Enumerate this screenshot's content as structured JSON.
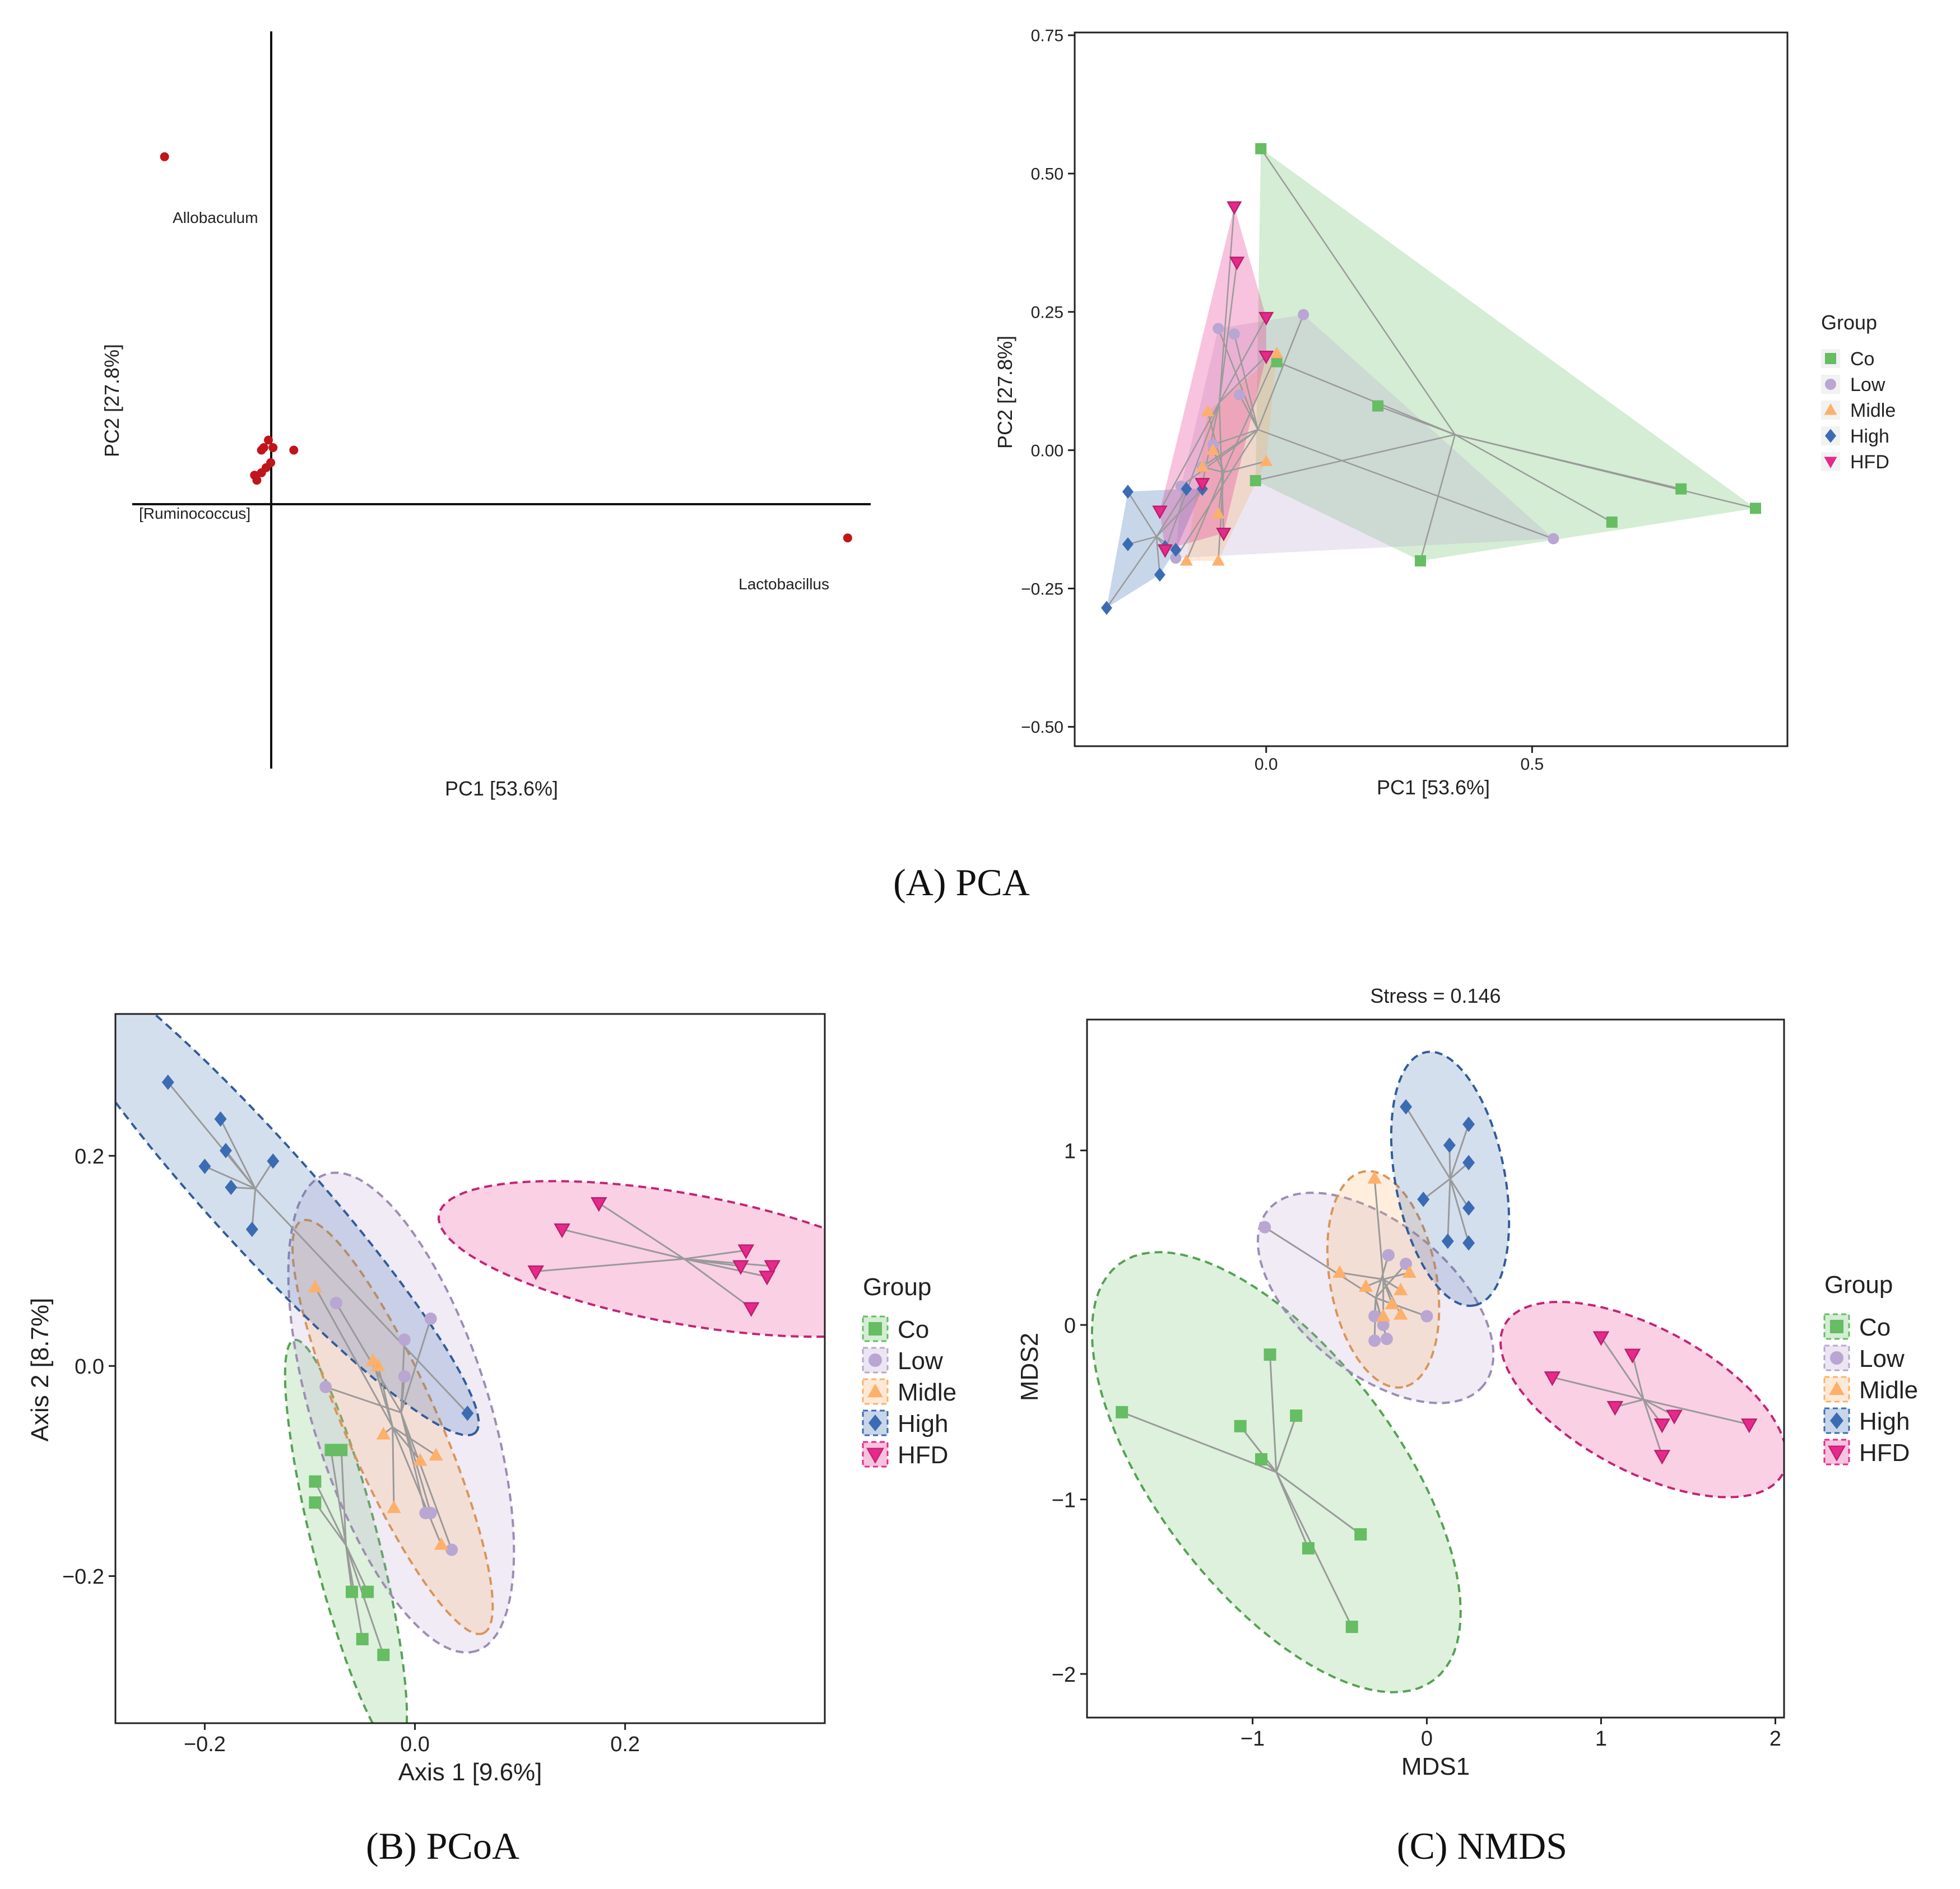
{
  "colors": {
    "Co": "#66bd63",
    "Low": "#b9a6d2",
    "Midle": "#fdb06a",
    "High": "#3b6cb3",
    "HFD": "#e7298a",
    "loading_point": "#c0151c",
    "segment": "#9a9a9a"
  },
  "captions": {
    "a": "(A) PCA",
    "b": "(B) PCoA",
    "c": "(C) NMDS"
  },
  "chart_data": [
    {
      "id": "biplot",
      "type": "scatter",
      "title": "",
      "xlabel": "PC1 [53.6%]",
      "ylabel": "PC2 [27.8%]",
      "xlim": [
        -0.3,
        1.3
      ],
      "ylim": [
        -0.62,
        0.85
      ],
      "labeled_points": [
        {
          "label": "Allobaculum",
          "x": -0.23,
          "y": 0.6
        },
        {
          "label": "Lactobacillus",
          "x": 1.25,
          "y": -0.16
        },
        {
          "label": "[Ruminococcus]",
          "x": -0.04,
          "y": -0.02
        }
      ],
      "points": [
        {
          "x": -0.02,
          "y": -0.03
        },
        {
          "x": -0.035,
          "y": -0.035
        },
        {
          "x": -0.03,
          "y": -0.045
        },
        {
          "x": -0.01,
          "y": -0.02
        },
        {
          "x": -0.015,
          "y": 0.02
        },
        {
          "x": -0.005,
          "y": 0.035
        },
        {
          "x": 0.005,
          "y": 0.02
        },
        {
          "x": 0.0,
          "y": -0.01
        },
        {
          "x": 0.05,
          "y": 0.015
        },
        {
          "x": -0.02,
          "y": 0.015
        }
      ]
    },
    {
      "id": "pca",
      "type": "scatter",
      "title": "",
      "xlabel": "PC1 [53.6%]",
      "ylabel": "PC2 [27.8%]",
      "xlim": [
        -0.36,
        0.98
      ],
      "ylim": [
        -0.535,
        0.755
      ],
      "xticks": [
        0.0,
        0.5
      ],
      "xtick_labels": [
        "0.0",
        "0.5"
      ],
      "yticks": [
        0.75,
        0.5,
        0.25,
        0.0,
        -0.25,
        -0.5
      ],
      "ytick_labels": [
        "0.75",
        "0.50",
        "0.25",
        "0.00",
        "−0.25",
        "−0.50"
      ],
      "legend_title": "Group",
      "series": [
        {
          "name": "Co",
          "marker": "square",
          "points": [
            [
              -0.01,
              0.545
            ],
            [
              0.02,
              0.16
            ],
            [
              0.21,
              0.08
            ],
            [
              -0.02,
              -0.055
            ],
            [
              0.29,
              -0.2
            ],
            [
              0.65,
              -0.13
            ],
            [
              0.78,
              -0.07
            ],
            [
              0.92,
              -0.105
            ]
          ]
        },
        {
          "name": "Low",
          "marker": "circle",
          "points": [
            [
              0.07,
              0.245
            ],
            [
              -0.09,
              0.22
            ],
            [
              -0.06,
              0.21
            ],
            [
              -0.1,
              0.01
            ],
            [
              -0.16,
              -0.065
            ],
            [
              -0.17,
              -0.195
            ],
            [
              0.54,
              -0.16
            ],
            [
              -0.12,
              -0.03
            ],
            [
              -0.05,
              0.1
            ]
          ]
        },
        {
          "name": "Midle",
          "marker": "triangle",
          "points": [
            [
              0.02,
              0.175
            ],
            [
              -0.11,
              0.07
            ],
            [
              -0.1,
              0.0
            ],
            [
              -0.12,
              -0.03
            ],
            [
              0.0,
              -0.02
            ],
            [
              -0.09,
              -0.115
            ],
            [
              -0.15,
              -0.2
            ],
            [
              -0.09,
              -0.2
            ]
          ]
        },
        {
          "name": "High",
          "marker": "diamond",
          "points": [
            [
              -0.3,
              -0.285
            ],
            [
              -0.26,
              -0.075
            ],
            [
              -0.26,
              -0.17
            ],
            [
              -0.2,
              -0.225
            ],
            [
              -0.19,
              -0.175
            ],
            [
              -0.17,
              -0.18
            ],
            [
              -0.15,
              -0.07
            ],
            [
              -0.12,
              -0.07
            ]
          ]
        },
        {
          "name": "HFD",
          "marker": "triangle-down",
          "points": [
            [
              -0.06,
              0.44
            ],
            [
              -0.055,
              0.34
            ],
            [
              -0.0,
              0.24
            ],
            [
              -0.0,
              0.17
            ],
            [
              -0.2,
              -0.11
            ],
            [
              -0.19,
              -0.18
            ],
            [
              -0.12,
              -0.06
            ],
            [
              -0.08,
              -0.15
            ]
          ]
        }
      ]
    },
    {
      "id": "pcoa",
      "type": "scatter",
      "title": "",
      "xlabel": "Axis 1 [9.6%]",
      "ylabel": "Axis 2 [8.7%]",
      "xlim": [
        -0.285,
        0.39
      ],
      "ylim": [
        -0.34,
        0.335
      ],
      "xticks": [
        -0.2,
        0.0,
        0.2
      ],
      "xtick_labels": [
        "−0.2",
        "0.0",
        "0.2"
      ],
      "yticks": [
        0.2,
        0.0,
        -0.2
      ],
      "ytick_labels": [
        "0.2",
        "0.0",
        "−0.2"
      ],
      "legend_title": "Group",
      "series": [
        {
          "name": "Co",
          "marker": "square",
          "points": [
            [
              -0.08,
              -0.08
            ],
            [
              -0.07,
              -0.08
            ],
            [
              -0.095,
              -0.11
            ],
            [
              -0.095,
              -0.13
            ],
            [
              -0.06,
              -0.215
            ],
            [
              -0.045,
              -0.215
            ],
            [
              -0.05,
              -0.26
            ],
            [
              -0.03,
              -0.275
            ]
          ]
        },
        {
          "name": "Low",
          "marker": "circle",
          "points": [
            [
              -0.075,
              0.06
            ],
            [
              -0.085,
              -0.02
            ],
            [
              0.015,
              0.045
            ],
            [
              -0.01,
              0.025
            ],
            [
              -0.01,
              -0.01
            ],
            [
              0.01,
              -0.14
            ],
            [
              0.015,
              -0.14
            ],
            [
              0.035,
              -0.175
            ]
          ]
        },
        {
          "name": "Midle",
          "marker": "triangle",
          "points": [
            [
              -0.095,
              0.075
            ],
            [
              -0.04,
              0.005
            ],
            [
              -0.035,
              0.0
            ],
            [
              -0.03,
              -0.065
            ],
            [
              -0.02,
              -0.135
            ],
            [
              0.005,
              -0.09
            ],
            [
              0.02,
              -0.085
            ],
            [
              0.025,
              -0.17
            ]
          ]
        },
        {
          "name": "High",
          "marker": "diamond",
          "points": [
            [
              -0.235,
              0.27
            ],
            [
              -0.185,
              0.235
            ],
            [
              -0.2,
              0.19
            ],
            [
              -0.18,
              0.205
            ],
            [
              -0.175,
              0.17
            ],
            [
              -0.135,
              0.195
            ],
            [
              -0.155,
              0.13
            ],
            [
              0.05,
              -0.045
            ]
          ]
        },
        {
          "name": "HFD",
          "marker": "triangle-down",
          "points": [
            [
              0.175,
              0.155
            ],
            [
              0.14,
              0.13
            ],
            [
              0.115,
              0.09
            ],
            [
              0.315,
              0.11
            ],
            [
              0.31,
              0.095
            ],
            [
              0.34,
              0.095
            ],
            [
              0.335,
              0.085
            ],
            [
              0.32,
              0.055
            ]
          ]
        }
      ]
    },
    {
      "id": "nmds",
      "type": "scatter",
      "title": "Stress = 0.146",
      "xlabel": "MDS1",
      "ylabel": "MDS2",
      "xlim": [
        -1.95,
        2.05
      ],
      "ylim": [
        -2.25,
        1.75
      ],
      "xticks": [
        -1,
        0,
        1,
        2
      ],
      "xtick_labels": [
        "−1",
        "0",
        "1",
        "2"
      ],
      "yticks": [
        1,
        0,
        -1,
        -2
      ],
      "ytick_labels": [
        "1",
        "0",
        "−1",
        "−2"
      ],
      "legend_title": "Group",
      "series": [
        {
          "name": "Co",
          "marker": "square",
          "points": [
            [
              -1.75,
              -0.5
            ],
            [
              -0.9,
              -0.17
            ],
            [
              -1.07,
              -0.58
            ],
            [
              -0.95,
              -0.77
            ],
            [
              -0.75,
              -0.52
            ],
            [
              -0.68,
              -1.28
            ],
            [
              -0.38,
              -1.2
            ],
            [
              -0.43,
              -1.73
            ]
          ]
        },
        {
          "name": "Low",
          "marker": "circle",
          "points": [
            [
              -0.93,
              0.56
            ],
            [
              -0.22,
              0.4
            ],
            [
              -0.12,
              0.35
            ],
            [
              -0.3,
              0.05
            ],
            [
              -0.25,
              0.0
            ],
            [
              -0.23,
              -0.08
            ],
            [
              0.0,
              0.05
            ],
            [
              -0.3,
              -0.09
            ]
          ]
        },
        {
          "name": "Midle",
          "marker": "triangle",
          "points": [
            [
              -0.3,
              0.84
            ],
            [
              -0.5,
              0.3
            ],
            [
              -0.35,
              0.22
            ],
            [
              -0.15,
              0.2
            ],
            [
              -0.1,
              0.3
            ],
            [
              -0.2,
              0.12
            ],
            [
              -0.25,
              0.05
            ],
            [
              -0.15,
              0.06
            ]
          ]
        },
        {
          "name": "High",
          "marker": "diamond",
          "points": [
            [
              -0.12,
              1.25
            ],
            [
              0.13,
              1.03
            ],
            [
              0.24,
              1.15
            ],
            [
              0.24,
              0.93
            ],
            [
              -0.02,
              0.72
            ],
            [
              0.24,
              0.67
            ],
            [
              0.12,
              0.48
            ],
            [
              0.24,
              0.47
            ]
          ]
        },
        {
          "name": "HFD",
          "marker": "triangle-down",
          "points": [
            [
              0.72,
              -0.3
            ],
            [
              1.0,
              -0.07
            ],
            [
              1.18,
              -0.17
            ],
            [
              1.08,
              -0.47
            ],
            [
              1.35,
              -0.57
            ],
            [
              1.42,
              -0.52
            ],
            [
              1.35,
              -0.75
            ],
            [
              1.85,
              -0.57
            ]
          ]
        }
      ]
    }
  ]
}
